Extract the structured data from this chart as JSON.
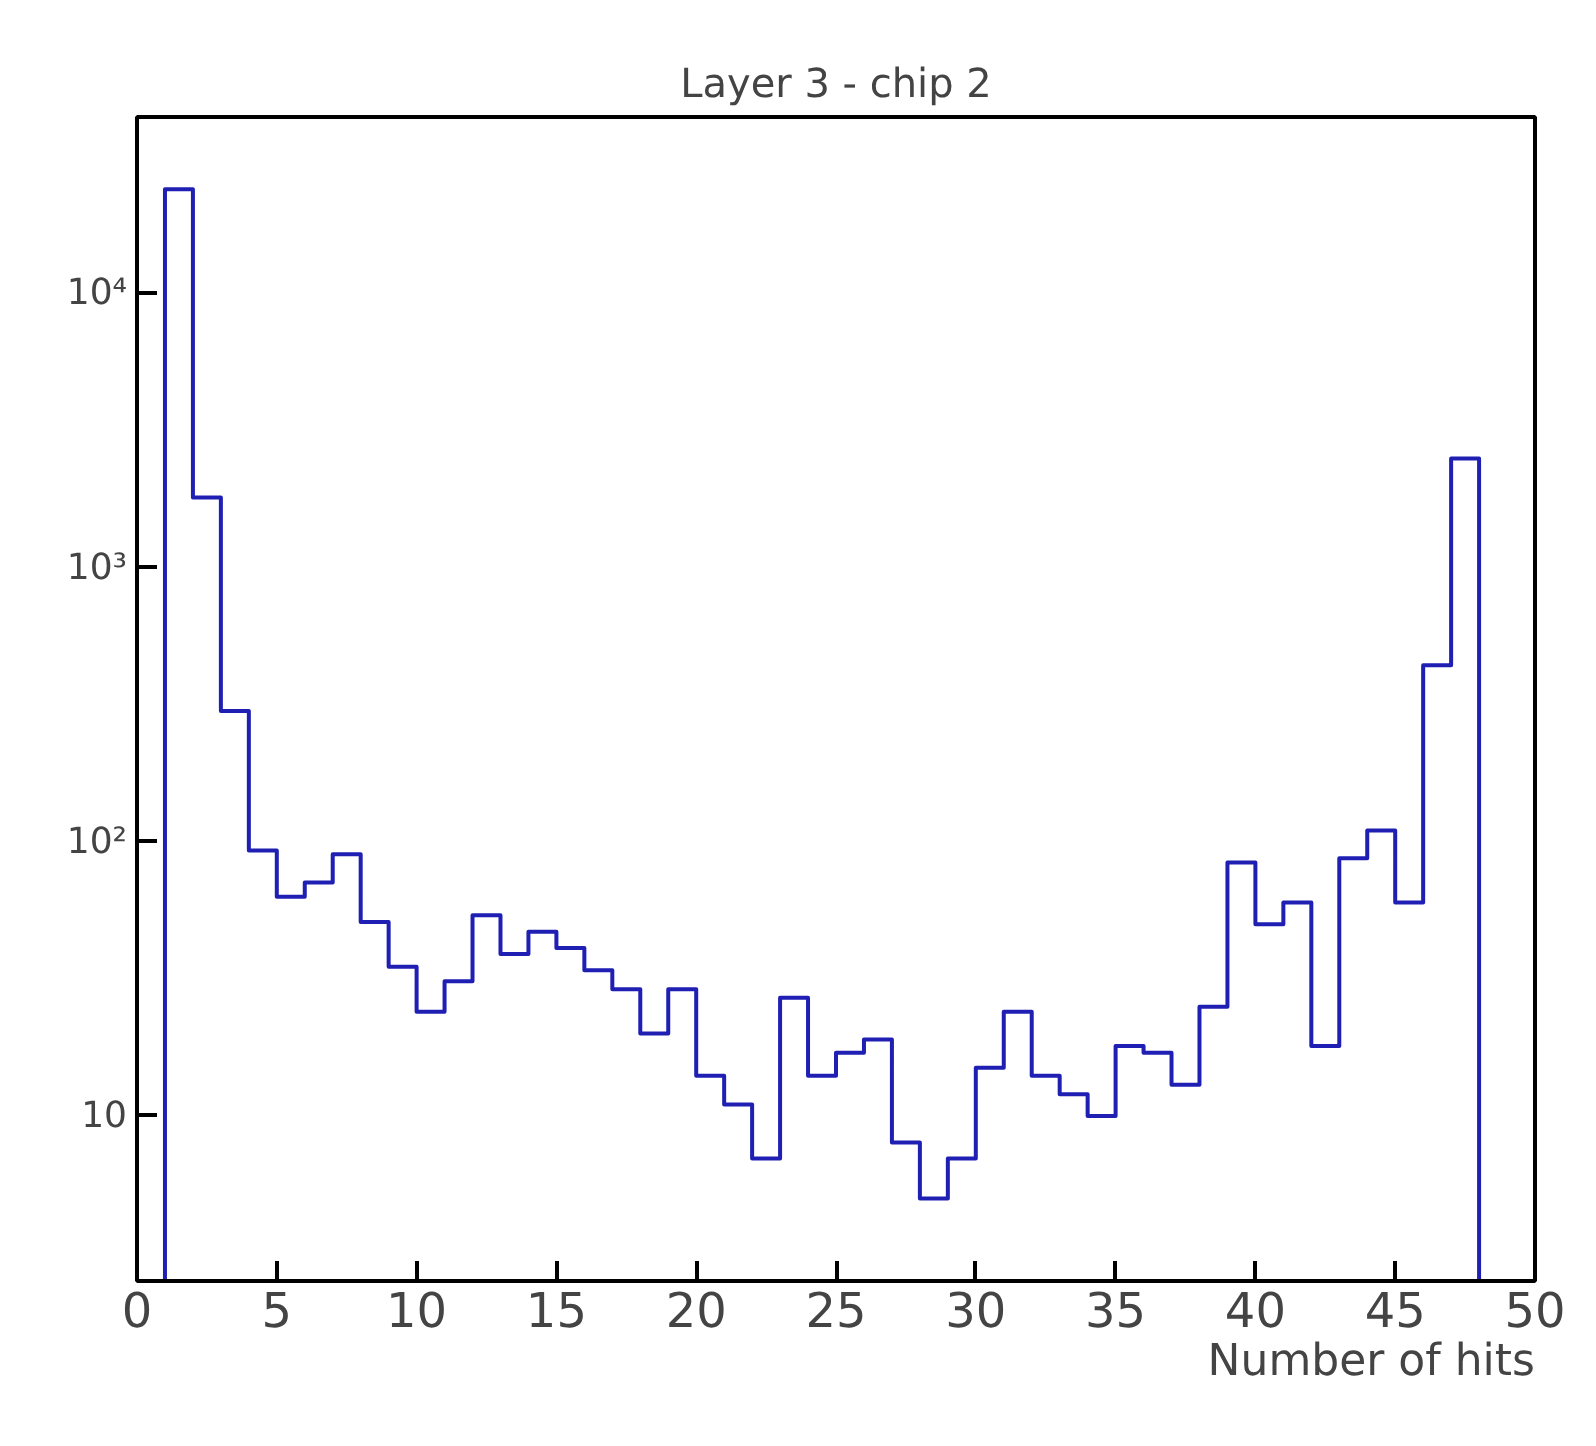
{
  "chart_data": {
    "type": "histogram",
    "title": "Layer 3 - chip 2",
    "xlabel": "Number of hits",
    "bins": [
      1,
      2,
      3,
      4,
      5,
      6,
      7,
      8,
      9,
      10,
      11,
      12,
      13,
      14,
      15,
      16,
      17,
      18,
      19,
      20,
      21,
      22,
      23,
      24,
      25,
      26,
      27,
      28,
      29,
      30,
      31,
      32,
      33,
      34,
      35,
      36,
      37,
      38,
      39,
      40,
      41,
      42,
      43,
      44,
      45,
      46,
      47,
      48
    ],
    "values": [
      24000,
      1800,
      300,
      93,
      63,
      71,
      90,
      51,
      35,
      24,
      31,
      54,
      39,
      47,
      41,
      34,
      29,
      20,
      29,
      14,
      11,
      7,
      27,
      14,
      17,
      19,
      8,
      5,
      7,
      15,
      24,
      14,
      12,
      10,
      18,
      17,
      13,
      25,
      84,
      50,
      60,
      18,
      87,
      110,
      60,
      440,
      2500
    ],
    "color": "#1f1fb4",
    "log": "y",
    "xlim": [
      0,
      50
    ],
    "ylim": [
      2.5,
      44000
    ],
    "xticks": [
      0,
      5,
      10,
      15,
      20,
      25,
      30,
      35,
      40,
      45,
      50
    ],
    "yticks": [
      10,
      {
        "value": 100,
        "label": "10²"
      },
      {
        "value": 1000,
        "label": "10³"
      },
      {
        "value": 10000,
        "label": "10⁴"
      }
    ],
    "grid": false
  }
}
